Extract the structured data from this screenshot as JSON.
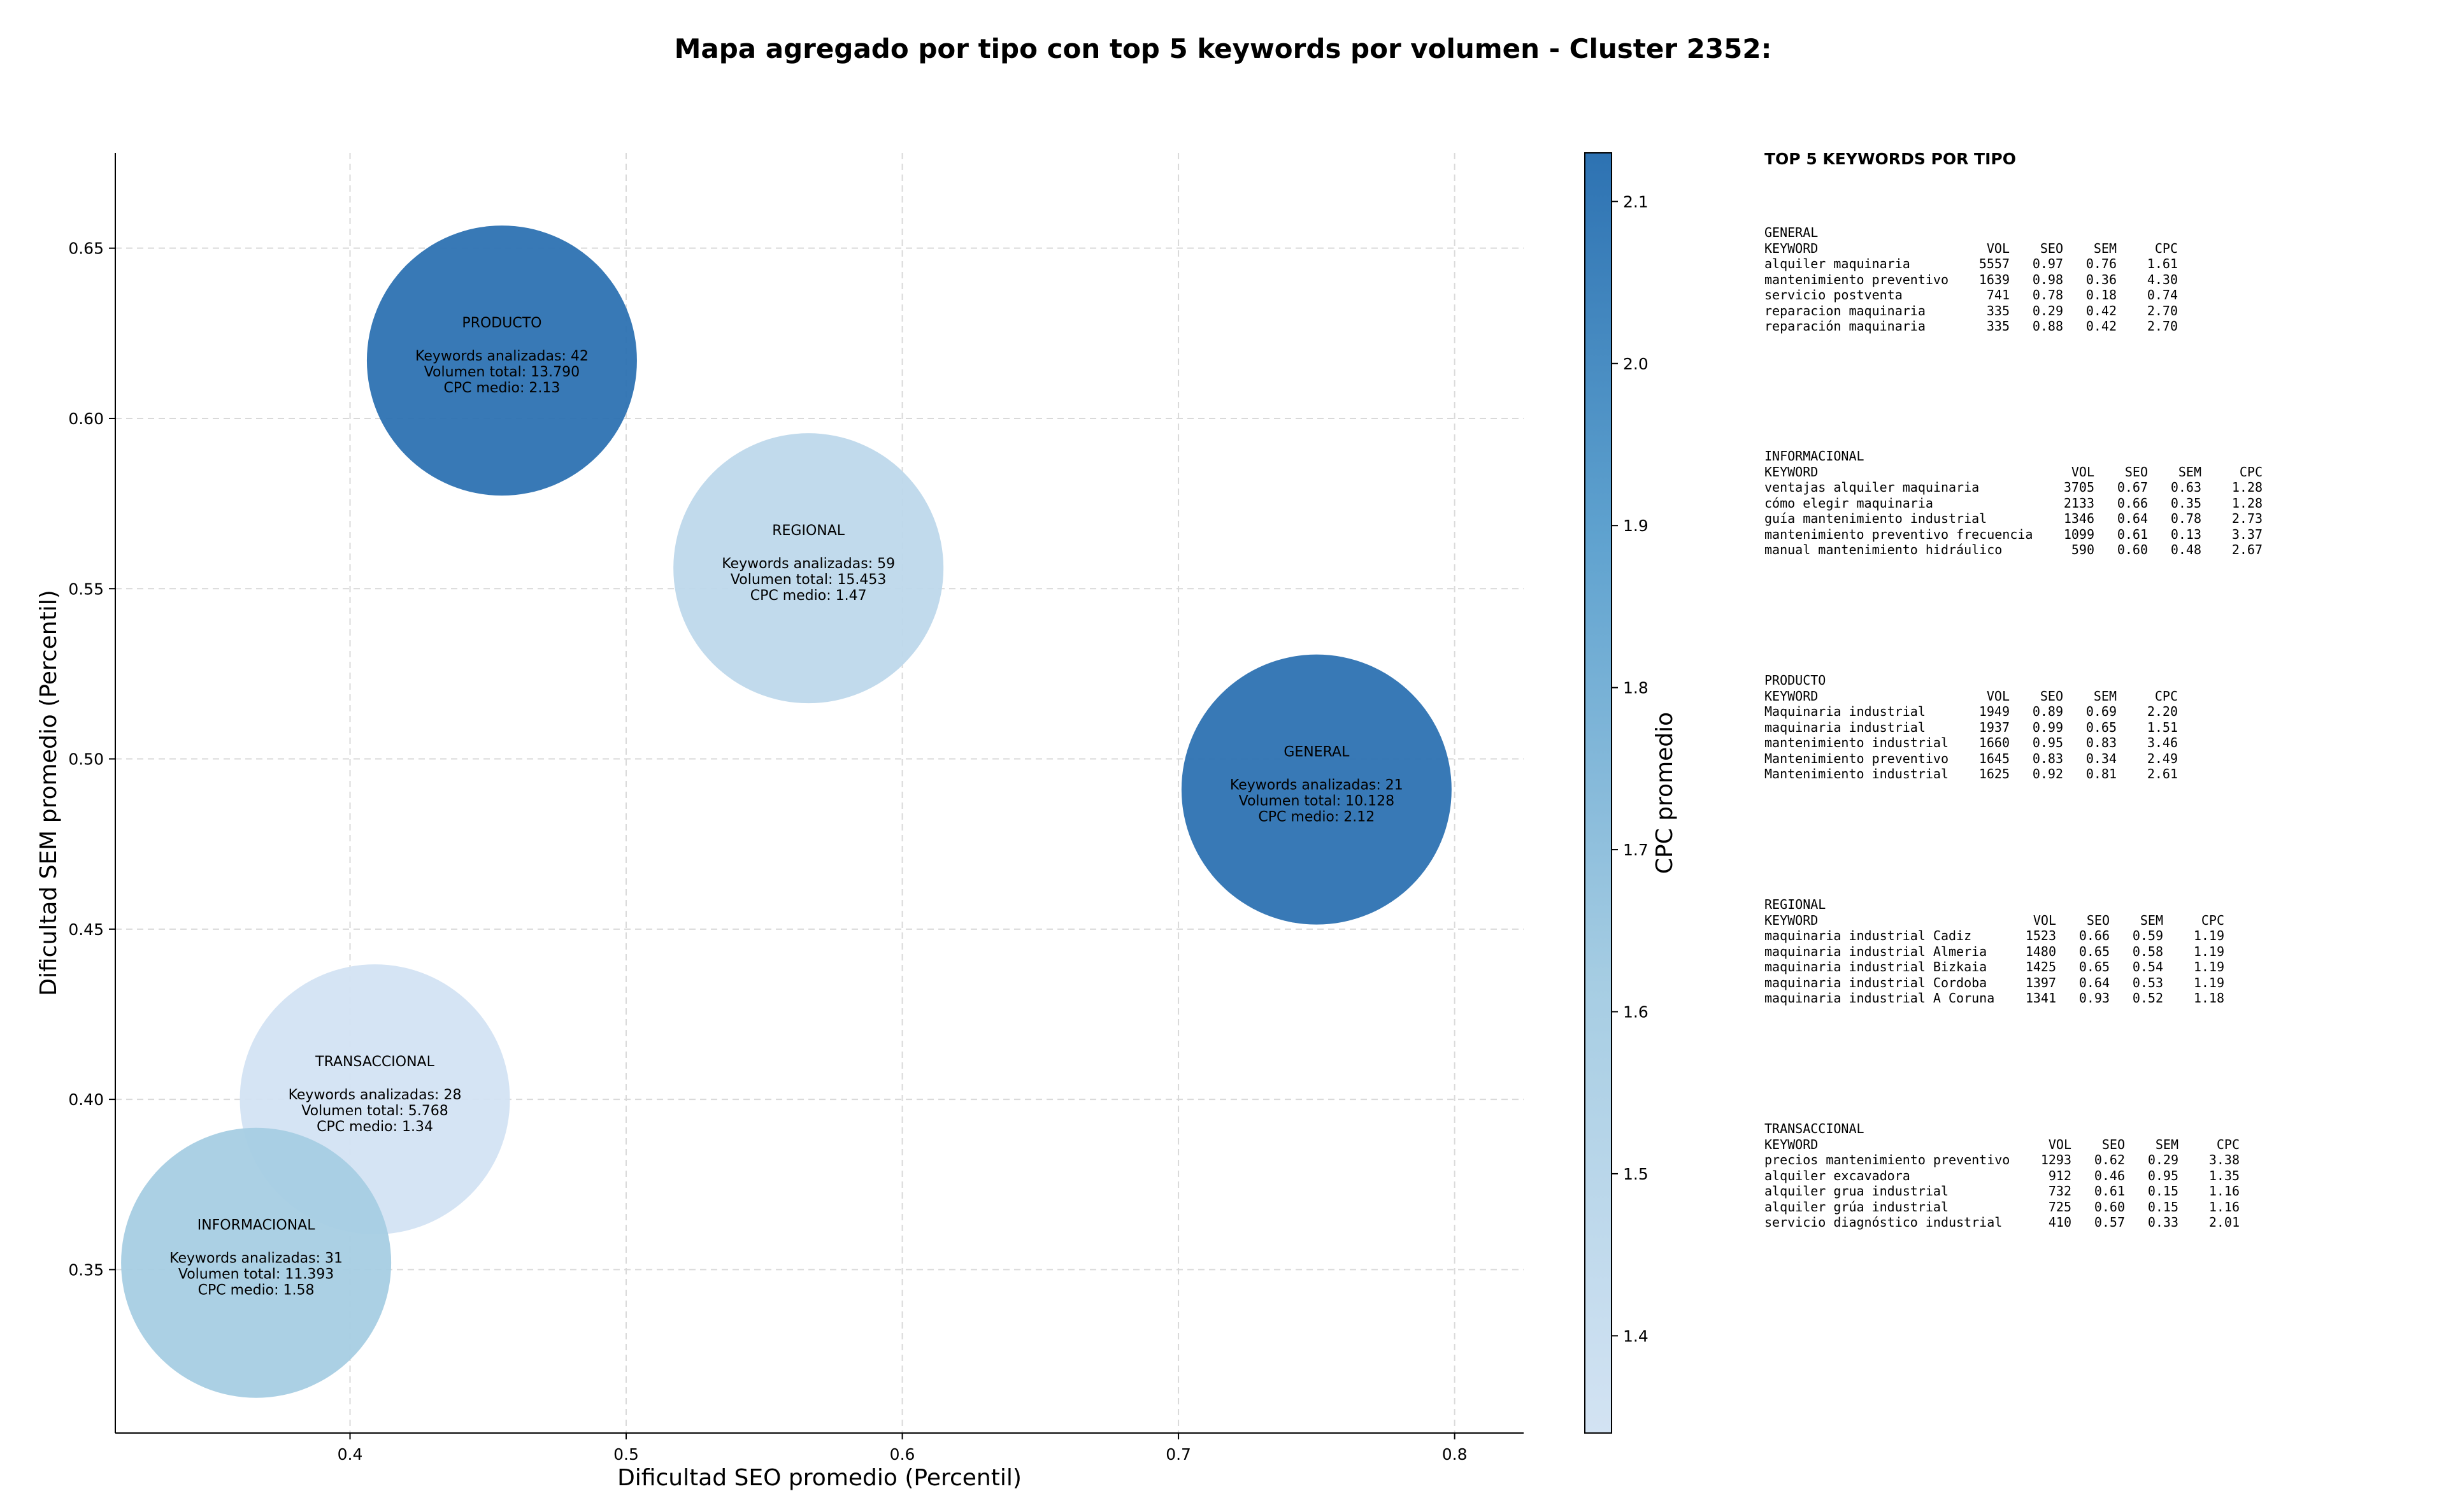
{
  "title": "Mapa agregado por tipo con top 5 keywords por volumen - Cluster 2352:",
  "chart_data": {
    "type": "scatter",
    "xlabel": "Dificultad SEO promedio (Percentil)",
    "ylabel": "Dificultad SEM promedio (Percentil)",
    "xlim": [
      0.315,
      0.825
    ],
    "ylim": [
      0.302,
      0.678
    ],
    "xticks": [
      0.4,
      0.5,
      0.6,
      0.7,
      0.8
    ],
    "xtick_labels": [
      "0.4",
      "0.5",
      "0.6",
      "0.7",
      "0.8"
    ],
    "yticks": [
      0.35,
      0.4,
      0.45,
      0.5,
      0.55,
      0.6,
      0.65
    ],
    "ytick_labels": [
      "0.35",
      "0.40",
      "0.45",
      "0.50",
      "0.55",
      "0.60",
      "0.65"
    ],
    "grid": true,
    "colorbar": {
      "label": "CPC promedio",
      "min": 1.34,
      "max": 2.13,
      "ticks": [
        1.4,
        1.5,
        1.6,
        1.7,
        1.8,
        1.9,
        2.0,
        2.1
      ],
      "tick_labels": [
        "1.4",
        "1.5",
        "1.6",
        "1.7",
        "1.8",
        "1.9",
        "2.0",
        "2.1"
      ],
      "colors": [
        "#d3e3f3",
        "#2d72b2"
      ]
    },
    "points": [
      {
        "label": "PRODUCTO",
        "x": 0.455,
        "y": 0.617,
        "keywords": 42,
        "volumen": 13790,
        "cpc": 2.13,
        "lines": [
          "Keywords analizadas: 42",
          "Volumen total: 13.790",
          "CPC medio: 2.13"
        ],
        "color": "#2d72b2"
      },
      {
        "label": "REGIONAL",
        "x": 0.566,
        "y": 0.556,
        "keywords": 59,
        "volumen": 15453,
        "cpc": 1.47,
        "lines": [
          "Keywords analizadas: 59",
          "Volumen total: 15.453",
          "CPC medio: 1.47"
        ],
        "color": "#bed8eb"
      },
      {
        "label": "GENERAL",
        "x": 0.75,
        "y": 0.491,
        "keywords": 21,
        "volumen": 10128,
        "cpc": 2.12,
        "lines": [
          "Keywords analizadas: 21",
          "Volumen total: 10.128",
          "CPC medio: 2.12"
        ],
        "color": "#2d72b2"
      },
      {
        "label": "TRANSACCIONAL",
        "x": 0.409,
        "y": 0.4,
        "keywords": 28,
        "volumen": 5768,
        "cpc": 1.34,
        "lines": [
          "Keywords analizadas: 28",
          "Volumen total: 5.768",
          "CPC medio: 1.34"
        ],
        "color": "#d3e3f3"
      },
      {
        "label": "INFORMACIONAL",
        "x": 0.366,
        "y": 0.352,
        "keywords": 31,
        "volumen": 11393,
        "cpc": 1.58,
        "lines": [
          "Keywords analizadas: 31",
          "Volumen total: 11.393",
          "CPC medio: 1.58"
        ],
        "color": "#a6cde3"
      }
    ]
  },
  "side_panel": {
    "title": "TOP 5 KEYWORDS POR TIPO",
    "header": [
      "KEYWORD",
      "VOL",
      "SEO",
      "SEM",
      "CPC"
    ],
    "groups": [
      {
        "name": "GENERAL",
        "rows": [
          [
            "alquiler maquinaria",
            "5557",
            "0.97",
            "0.76",
            "1.61"
          ],
          [
            "mantenimiento preventivo",
            "1639",
            "0.98",
            "0.36",
            "4.30"
          ],
          [
            "servicio postventa",
            "741",
            "0.78",
            "0.18",
            "0.74"
          ],
          [
            "reparacion maquinaria",
            "335",
            "0.29",
            "0.42",
            "2.70"
          ],
          [
            "reparación maquinaria",
            "335",
            "0.88",
            "0.42",
            "2.70"
          ]
        ]
      },
      {
        "name": "INFORMACIONAL",
        "rows": [
          [
            "ventajas alquiler maquinaria",
            "3705",
            "0.67",
            "0.63",
            "1.28"
          ],
          [
            "cómo elegir maquinaria",
            "2133",
            "0.66",
            "0.35",
            "1.28"
          ],
          [
            "guía mantenimiento industrial",
            "1346",
            "0.64",
            "0.78",
            "2.73"
          ],
          [
            "mantenimiento preventivo frecuencia",
            "1099",
            "0.61",
            "0.13",
            "3.37"
          ],
          [
            "manual mantenimiento hidráulico",
            "590",
            "0.60",
            "0.48",
            "2.67"
          ]
        ]
      },
      {
        "name": "PRODUCTO",
        "rows": [
          [
            "Maquinaria industrial",
            "1949",
            "0.89",
            "0.69",
            "2.20"
          ],
          [
            "maquinaria industrial",
            "1937",
            "0.99",
            "0.65",
            "1.51"
          ],
          [
            "mantenimiento industrial",
            "1660",
            "0.95",
            "0.83",
            "3.46"
          ],
          [
            "Mantenimiento preventivo",
            "1645",
            "0.83",
            "0.34",
            "2.49"
          ],
          [
            "Mantenimiento industrial",
            "1625",
            "0.92",
            "0.81",
            "2.61"
          ]
        ]
      },
      {
        "name": "REGIONAL",
        "rows": [
          [
            "maquinaria industrial Cadiz",
            "1523",
            "0.66",
            "0.59",
            "1.19"
          ],
          [
            "maquinaria industrial Almeria",
            "1480",
            "0.65",
            "0.58",
            "1.19"
          ],
          [
            "maquinaria industrial Bizkaia",
            "1425",
            "0.65",
            "0.54",
            "1.19"
          ],
          [
            "maquinaria industrial Cordoba",
            "1397",
            "0.64",
            "0.53",
            "1.19"
          ],
          [
            "maquinaria industrial A Coruna",
            "1341",
            "0.93",
            "0.52",
            "1.18"
          ]
        ]
      },
      {
        "name": "TRANSACCIONAL",
        "rows": [
          [
            "precios mantenimiento preventivo",
            "1293",
            "0.62",
            "0.29",
            "3.38"
          ],
          [
            "alquiler excavadora",
            "912",
            "0.46",
            "0.95",
            "1.35"
          ],
          [
            "alquiler grua industrial",
            "732",
            "0.61",
            "0.15",
            "1.16"
          ],
          [
            "alquiler grúa industrial",
            "725",
            "0.60",
            "0.15",
            "1.16"
          ],
          [
            "servicio diagnóstico industrial",
            "410",
            "0.57",
            "0.33",
            "2.01"
          ]
        ]
      }
    ]
  }
}
